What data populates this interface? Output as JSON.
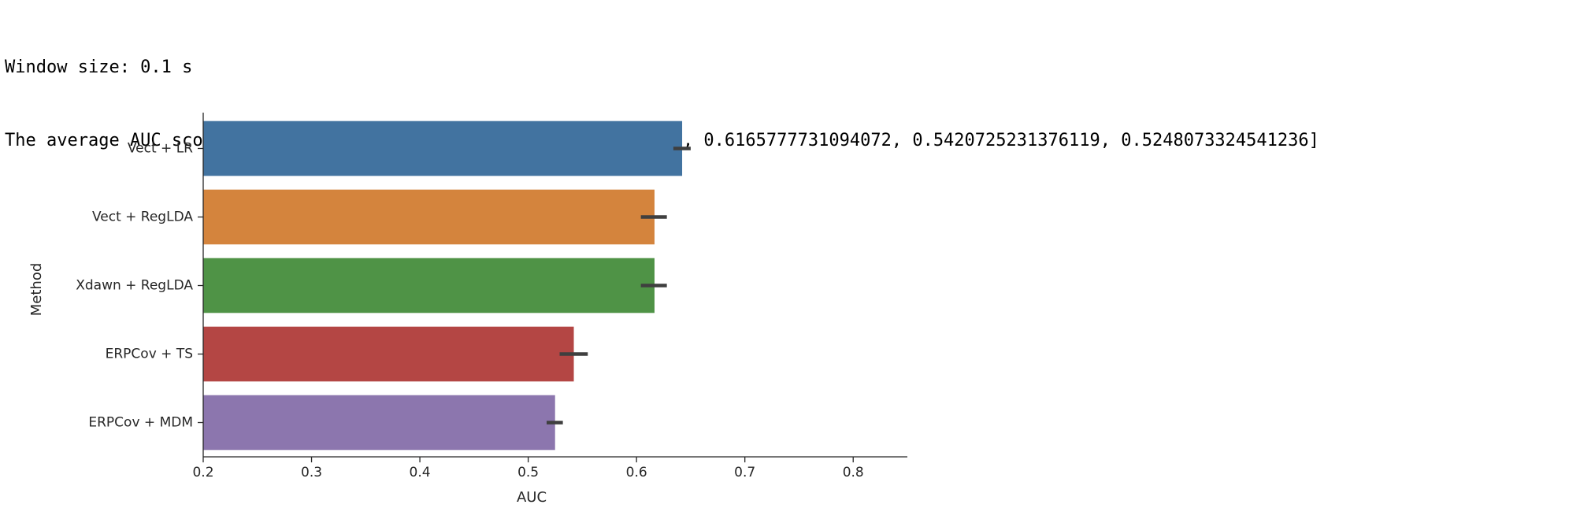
{
  "console": {
    "line1": "Window size: 0.1 s",
    "line2": "The average AUC score is: [0.6421339900174676, 0.6165777731094072, 0.6165777731094072, 0.5420725231376119, 0.5248073324541236]"
  },
  "chart_data": {
    "type": "bar",
    "orientation": "horizontal",
    "xlabel": "AUC",
    "ylabel": "Method",
    "xlim": [
      0.2,
      0.85
    ],
    "xticks": [
      "0.2",
      "0.3",
      "0.4",
      "0.5",
      "0.6",
      "0.7",
      "0.8"
    ],
    "categories": [
      "Vect + LR",
      "Vect + RegLDA",
      "Xdawn + RegLDA",
      "ERPCov + TS",
      "ERPCov + MDM"
    ],
    "values": [
      0.6421,
      0.6166,
      0.6166,
      0.5421,
      0.5248
    ],
    "error_low": [
      0.634,
      0.604,
      0.604,
      0.529,
      0.517
    ],
    "error_high": [
      0.65,
      0.628,
      0.628,
      0.555,
      0.532
    ],
    "colors": [
      "#4273a0",
      "#d4843d",
      "#4f9346",
      "#b44644",
      "#8c76ae"
    ],
    "error_color": "#3f3f3f",
    "grid": false,
    "legend": "none"
  }
}
